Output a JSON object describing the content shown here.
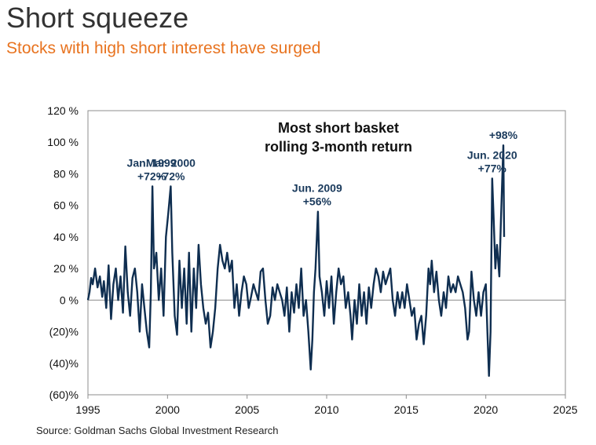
{
  "header": {
    "title": "Short squeeze",
    "subtitle": "Stocks with high short interest have surged"
  },
  "footer": {
    "source": "Source: Goldman Sachs Global Investment Research"
  },
  "colors": {
    "series": "#0f2e50",
    "subtitle": "#e8731f",
    "annotation": "#1a3a5c"
  },
  "chart_data": {
    "type": "line",
    "title": "",
    "inset_title": [
      "Most short basket",
      "rolling 3-month return"
    ],
    "xlabel": "",
    "ylabel": "",
    "xlim": [
      1995,
      2025
    ],
    "ylim": [
      -60,
      120
    ],
    "grid": false,
    "x_ticks": [
      1995,
      2000,
      2005,
      2010,
      2015,
      2020,
      2025
    ],
    "x_tick_labels": [
      "1995",
      "2000",
      "2005",
      "2010",
      "2015",
      "2020",
      "2025"
    ],
    "y_ticks": [
      120,
      100,
      80,
      60,
      40,
      20,
      0,
      -20,
      -40,
      -60
    ],
    "y_tick_labels": [
      "120 %",
      "100 %",
      "80 %",
      "60 %",
      "40 %",
      "20 %",
      "0 %",
      "(20)%",
      "(40)%",
      "(60)%"
    ],
    "annotations": [
      {
        "lines": [
          "Jan. 1999",
          "+72%"
        ],
        "x": 1999.0,
        "y": 72
      },
      {
        "lines": [
          "Mar. 2000",
          "+72%"
        ],
        "x": 2000.2,
        "y": 72
      },
      {
        "lines": [
          "Jun. 2009",
          "+56%"
        ],
        "x": 2009.4,
        "y": 56
      },
      {
        "lines": [
          "Jun. 2020",
          "+77%"
        ],
        "x": 2020.4,
        "y": 77
      },
      {
        "lines": [
          "+98%"
        ],
        "x": 2021.1,
        "y": 98
      }
    ],
    "series": [
      {
        "values": [
          [
            1995.0,
            0
          ],
          [
            1995.1,
            5
          ],
          [
            1995.2,
            14
          ],
          [
            1995.3,
            10
          ],
          [
            1995.45,
            20
          ],
          [
            1995.6,
            8
          ],
          [
            1995.75,
            15
          ],
          [
            1995.9,
            2
          ],
          [
            1996.0,
            12
          ],
          [
            1996.15,
            -5
          ],
          [
            1996.3,
            22
          ],
          [
            1996.45,
            -12
          ],
          [
            1996.6,
            10
          ],
          [
            1996.75,
            20
          ],
          [
            1996.9,
            0
          ],
          [
            1997.05,
            15
          ],
          [
            1997.2,
            -8
          ],
          [
            1997.35,
            34
          ],
          [
            1997.5,
            5
          ],
          [
            1997.65,
            -10
          ],
          [
            1997.8,
            14
          ],
          [
            1997.95,
            20
          ],
          [
            1998.1,
            5
          ],
          [
            1998.25,
            -20
          ],
          [
            1998.4,
            10
          ],
          [
            1998.55,
            -5
          ],
          [
            1998.7,
            -20
          ],
          [
            1998.85,
            -30
          ],
          [
            1998.95,
            5
          ],
          [
            1999.05,
            72
          ],
          [
            1999.15,
            20
          ],
          [
            1999.3,
            30
          ],
          [
            1999.45,
            0
          ],
          [
            1999.6,
            20
          ],
          [
            1999.75,
            -10
          ],
          [
            1999.9,
            40
          ],
          [
            2000.05,
            55
          ],
          [
            2000.2,
            72
          ],
          [
            2000.3,
            30
          ],
          [
            2000.45,
            -10
          ],
          [
            2000.6,
            -22
          ],
          [
            2000.75,
            25
          ],
          [
            2000.9,
            -5
          ],
          [
            2001.05,
            20
          ],
          [
            2001.2,
            -15
          ],
          [
            2001.35,
            30
          ],
          [
            2001.5,
            -20
          ],
          [
            2001.65,
            20
          ],
          [
            2001.8,
            -5
          ],
          [
            2001.95,
            35
          ],
          [
            2002.1,
            10
          ],
          [
            2002.25,
            -5
          ],
          [
            2002.4,
            -15
          ],
          [
            2002.55,
            -8
          ],
          [
            2002.7,
            -30
          ],
          [
            2002.85,
            -20
          ],
          [
            2003.0,
            -5
          ],
          [
            2003.15,
            20
          ],
          [
            2003.3,
            35
          ],
          [
            2003.45,
            25
          ],
          [
            2003.6,
            20
          ],
          [
            2003.75,
            30
          ],
          [
            2003.9,
            18
          ],
          [
            2004.05,
            25
          ],
          [
            2004.2,
            -5
          ],
          [
            2004.35,
            10
          ],
          [
            2004.5,
            -10
          ],
          [
            2004.65,
            5
          ],
          [
            2004.8,
            15
          ],
          [
            2004.95,
            10
          ],
          [
            2005.1,
            -5
          ],
          [
            2005.25,
            2
          ],
          [
            2005.4,
            10
          ],
          [
            2005.55,
            5
          ],
          [
            2005.7,
            0
          ],
          [
            2005.85,
            18
          ],
          [
            2006.0,
            20
          ],
          [
            2006.15,
            0
          ],
          [
            2006.3,
            -15
          ],
          [
            2006.45,
            -10
          ],
          [
            2006.6,
            8
          ],
          [
            2006.75,
            0
          ],
          [
            2006.9,
            10
          ],
          [
            2007.05,
            5
          ],
          [
            2007.2,
            0
          ],
          [
            2007.35,
            -10
          ],
          [
            2007.5,
            8
          ],
          [
            2007.65,
            -20
          ],
          [
            2007.8,
            5
          ],
          [
            2007.95,
            -8
          ],
          [
            2008.1,
            10
          ],
          [
            2008.25,
            -5
          ],
          [
            2008.4,
            20
          ],
          [
            2008.55,
            -10
          ],
          [
            2008.7,
            0
          ],
          [
            2008.85,
            -20
          ],
          [
            2009.0,
            -44
          ],
          [
            2009.1,
            -25
          ],
          [
            2009.2,
            5
          ],
          [
            2009.3,
            20
          ],
          [
            2009.45,
            56
          ],
          [
            2009.55,
            15
          ],
          [
            2009.7,
            5
          ],
          [
            2009.85,
            -10
          ],
          [
            2010.0,
            12
          ],
          [
            2010.15,
            -5
          ],
          [
            2010.3,
            15
          ],
          [
            2010.45,
            -15
          ],
          [
            2010.6,
            5
          ],
          [
            2010.75,
            20
          ],
          [
            2010.9,
            10
          ],
          [
            2011.05,
            15
          ],
          [
            2011.2,
            -5
          ],
          [
            2011.35,
            5
          ],
          [
            2011.5,
            -10
          ],
          [
            2011.6,
            -25
          ],
          [
            2011.75,
            0
          ],
          [
            2011.9,
            -15
          ],
          [
            2012.05,
            10
          ],
          [
            2012.2,
            -10
          ],
          [
            2012.35,
            5
          ],
          [
            2012.5,
            -15
          ],
          [
            2012.65,
            8
          ],
          [
            2012.8,
            -5
          ],
          [
            2012.95,
            10
          ],
          [
            2013.1,
            20
          ],
          [
            2013.25,
            15
          ],
          [
            2013.4,
            5
          ],
          [
            2013.55,
            18
          ],
          [
            2013.7,
            10
          ],
          [
            2013.85,
            15
          ],
          [
            2014.0,
            20
          ],
          [
            2014.15,
            0
          ],
          [
            2014.3,
            -10
          ],
          [
            2014.45,
            5
          ],
          [
            2014.6,
            -5
          ],
          [
            2014.75,
            5
          ],
          [
            2014.9,
            -5
          ],
          [
            2015.05,
            10
          ],
          [
            2015.2,
            0
          ],
          [
            2015.35,
            -10
          ],
          [
            2015.5,
            -5
          ],
          [
            2015.65,
            -25
          ],
          [
            2015.8,
            -15
          ],
          [
            2015.95,
            -10
          ],
          [
            2016.1,
            -28
          ],
          [
            2016.25,
            -10
          ],
          [
            2016.4,
            20
          ],
          [
            2016.5,
            10
          ],
          [
            2016.6,
            25
          ],
          [
            2016.75,
            5
          ],
          [
            2016.9,
            18
          ],
          [
            2017.05,
            0
          ],
          [
            2017.2,
            -10
          ],
          [
            2017.35,
            5
          ],
          [
            2017.5,
            -5
          ],
          [
            2017.65,
            15
          ],
          [
            2017.8,
            5
          ],
          [
            2017.95,
            10
          ],
          [
            2018.1,
            5
          ],
          [
            2018.25,
            15
          ],
          [
            2018.4,
            10
          ],
          [
            2018.55,
            5
          ],
          [
            2018.7,
            -5
          ],
          [
            2018.85,
            -25
          ],
          [
            2018.95,
            -20
          ],
          [
            2019.1,
            18
          ],
          [
            2019.25,
            0
          ],
          [
            2019.4,
            -10
          ],
          [
            2019.55,
            5
          ],
          [
            2019.7,
            -10
          ],
          [
            2019.85,
            5
          ],
          [
            2020.0,
            10
          ],
          [
            2020.1,
            -20
          ],
          [
            2020.2,
            -48
          ],
          [
            2020.3,
            -20
          ],
          [
            2020.4,
            77
          ],
          [
            2020.5,
            50
          ],
          [
            2020.6,
            20
          ],
          [
            2020.7,
            35
          ],
          [
            2020.85,
            15
          ],
          [
            2020.95,
            50
          ],
          [
            2021.1,
            98
          ],
          [
            2021.15,
            40
          ]
        ]
      }
    ]
  }
}
